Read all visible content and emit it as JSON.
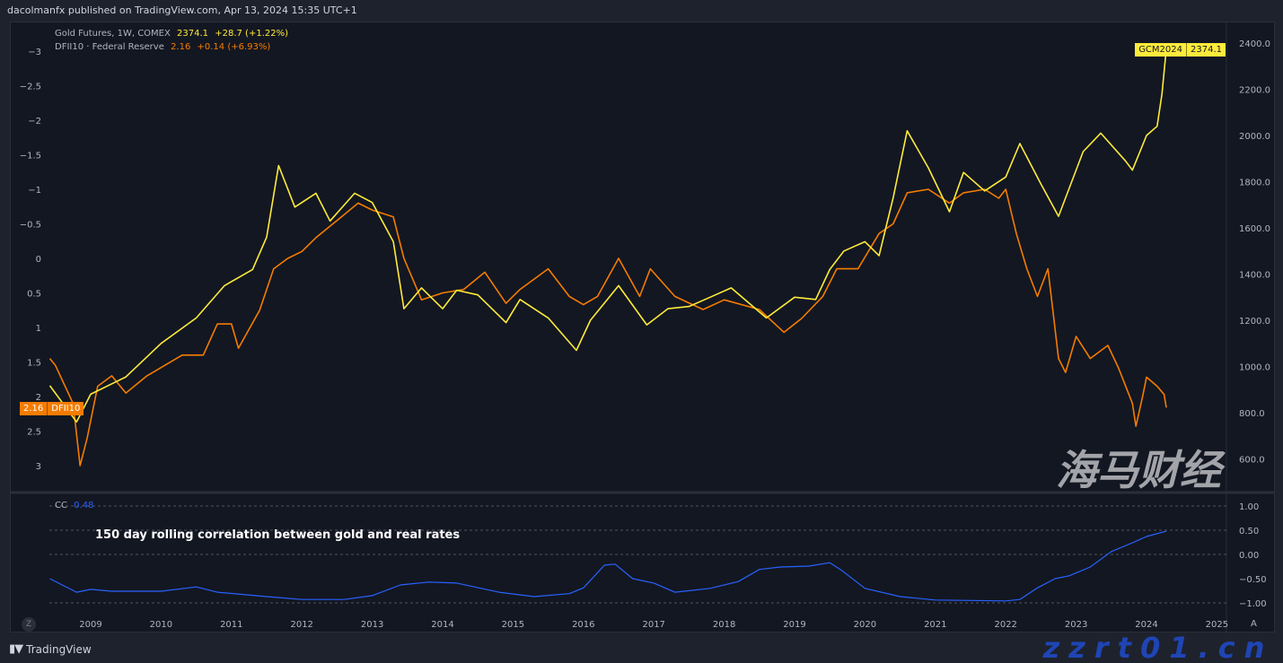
{
  "header": {
    "published": "dacolmanfx published on TradingView.com, Apr 13, 2024 15:35 UTC+1"
  },
  "legend": {
    "gold": {
      "name": "Gold Futures, 1W, COMEX",
      "value": "2374.1",
      "change": "+28.7 (+1.22%)"
    },
    "rates": {
      "name": "DFII10 · Federal Reserve",
      "value": "2.16",
      "change": "+0.14 (+6.93%)"
    },
    "cc": {
      "name": "CC",
      "value": "0.48"
    }
  },
  "badges": {
    "gold": {
      "symbol": "GCM2024",
      "value": "2374.1"
    },
    "rates": {
      "symbol": "DFII10",
      "value": "2.16"
    }
  },
  "annotation": "150 day rolling correlation between gold and real rates",
  "footer": {
    "brand": "TradingView"
  },
  "zoom_button": "Z",
  "auto_label": "A",
  "watermark": {
    "cn": "海马财经",
    "url": "zzrt01.cn"
  },
  "colors": {
    "gold": "#ffeb3b",
    "rates": "#f57c00",
    "cc": "#2962ff",
    "background": "#131722"
  },
  "chart_data": [
    {
      "type": "line",
      "title": "",
      "x_axis": {
        "ticks": [
          "2009",
          "2010",
          "2011",
          "2012",
          "2013",
          "2014",
          "2015",
          "2016",
          "2017",
          "2018",
          "2019",
          "2020",
          "2021",
          "2022",
          "2023",
          "2024",
          "2025"
        ],
        "range": [
          2007.98,
          2025.3
        ]
      },
      "right_axis": {
        "series": "gold",
        "ticks": [
          "2400.0",
          "2200.0",
          "2000.0",
          "1800.0",
          "1600.0",
          "1400.0",
          "1200.0",
          "1000.0",
          "800.0",
          "600.0"
        ],
        "range": [
          540,
          2420
        ]
      },
      "left_axis": {
        "series": "rates",
        "inverted": true,
        "ticks": [
          "-3",
          "-2.5",
          "-2",
          "-1.5",
          "-1",
          "-0.5",
          "0",
          "0.5",
          "1",
          "1.5",
          "2",
          "2.5",
          "3"
        ],
        "range": [
          -3.4,
          3.3
        ]
      },
      "grid": false,
      "series": [
        {
          "name": "Gold Futures, 1W, COMEX",
          "axis": "right",
          "x": [
            2008.42,
            2008.8,
            2009.0,
            2009.5,
            2010.0,
            2010.5,
            2010.9,
            2011.3,
            2011.5,
            2011.67,
            2011.9,
            2012.2,
            2012.4,
            2012.75,
            2013.0,
            2013.3,
            2013.45,
            2013.7,
            2014.0,
            2014.2,
            2014.5,
            2014.9,
            2015.1,
            2015.5,
            2015.9,
            2016.1,
            2016.5,
            2016.9,
            2017.2,
            2017.5,
            2017.8,
            2018.1,
            2018.6,
            2019.0,
            2019.3,
            2019.5,
            2019.7,
            2020.0,
            2020.2,
            2020.4,
            2020.6,
            2020.9,
            2021.2,
            2021.4,
            2021.7,
            2022.0,
            2022.2,
            2022.5,
            2022.75,
            2023.1,
            2023.35,
            2023.7,
            2023.8,
            2024.0,
            2024.15,
            2024.22,
            2024.28
          ],
          "values": [
            917,
            760,
            880,
            955,
            1100,
            1210,
            1350,
            1420,
            1560,
            1870,
            1690,
            1750,
            1630,
            1750,
            1710,
            1540,
            1250,
            1340,
            1250,
            1330,
            1310,
            1190,
            1290,
            1210,
            1070,
            1200,
            1350,
            1180,
            1250,
            1260,
            1300,
            1340,
            1210,
            1300,
            1290,
            1420,
            1500,
            1540,
            1480,
            1730,
            2020,
            1860,
            1670,
            1840,
            1760,
            1820,
            1965,
            1790,
            1650,
            1930,
            2010,
            1890,
            1850,
            2000,
            2040,
            2180,
            2374
          ]
        },
        {
          "name": "DFII10 · Federal Reserve",
          "axis": "left",
          "x": [
            2008.42,
            2008.5,
            2008.75,
            2008.85,
            2008.95,
            2009.1,
            2009.3,
            2009.5,
            2009.8,
            2010.0,
            2010.3,
            2010.6,
            2010.8,
            2011.0,
            2011.1,
            2011.4,
            2011.6,
            2011.8,
            2012.0,
            2012.2,
            2012.5,
            2012.8,
            2013.0,
            2013.3,
            2013.45,
            2013.7,
            2014.0,
            2014.3,
            2014.6,
            2014.9,
            2015.1,
            2015.5,
            2015.8,
            2016.0,
            2016.2,
            2016.5,
            2016.8,
            2016.95,
            2017.3,
            2017.7,
            2018.0,
            2018.5,
            2018.85,
            2019.1,
            2019.4,
            2019.6,
            2019.9,
            2020.2,
            2020.4,
            2020.6,
            2020.9,
            2021.2,
            2021.4,
            2021.7,
            2021.9,
            2022.0,
            2022.15,
            2022.3,
            2022.45,
            2022.6,
            2022.75,
            2022.85,
            2023.0,
            2023.2,
            2023.45,
            2023.6,
            2023.8,
            2023.85,
            2023.95,
            2024.0,
            2024.15,
            2024.25,
            2024.28
          ],
          "values": [
            1.45,
            1.55,
            2.1,
            3.0,
            2.6,
            1.85,
            1.7,
            1.95,
            1.7,
            1.58,
            1.4,
            1.4,
            0.95,
            0.95,
            1.3,
            0.75,
            0.15,
            0.0,
            -0.1,
            -0.3,
            -0.55,
            -0.8,
            -0.7,
            -0.6,
            0.0,
            0.6,
            0.5,
            0.45,
            0.2,
            0.65,
            0.45,
            0.15,
            0.55,
            0.67,
            0.55,
            0.0,
            0.55,
            0.15,
            0.55,
            0.74,
            0.6,
            0.74,
            1.07,
            0.87,
            0.55,
            0.15,
            0.15,
            -0.36,
            -0.5,
            -0.95,
            -1.0,
            -0.8,
            -0.95,
            -1.0,
            -0.87,
            -1.0,
            -0.36,
            0.15,
            0.55,
            0.15,
            1.45,
            1.65,
            1.13,
            1.45,
            1.26,
            1.58,
            2.1,
            2.43,
            1.97,
            1.72,
            1.85,
            1.97,
            2.16
          ]
        }
      ]
    },
    {
      "type": "line",
      "title": "",
      "y_axis": {
        "ticks": [
          "1.00",
          "0.50",
          "0.00",
          "-0.50",
          "-1.00"
        ],
        "range": [
          -1.15,
          1.0
        ],
        "dashed_levels": [
          1.0,
          0.5,
          0.0,
          -1.0
        ]
      },
      "series": [
        {
          "name": "CC",
          "x": [
            2008.42,
            2008.8,
            2009.0,
            2009.3,
            2010.0,
            2010.5,
            2010.8,
            2011.5,
            2012.0,
            2012.6,
            2013.0,
            2013.4,
            2013.8,
            2014.2,
            2014.8,
            2015.3,
            2015.8,
            2016.0,
            2016.3,
            2016.45,
            2016.7,
            2017.0,
            2017.3,
            2017.8,
            2018.2,
            2018.5,
            2018.8,
            2019.2,
            2019.5,
            2019.65,
            2020.0,
            2020.5,
            2021.0,
            2022.0,
            2022.2,
            2022.45,
            2022.7,
            2022.9,
            2023.2,
            2023.5,
            2023.8,
            2024.0,
            2024.28
          ],
          "values": [
            -0.5,
            -0.78,
            -0.72,
            -0.76,
            -0.76,
            -0.67,
            -0.78,
            -0.87,
            -0.93,
            -0.93,
            -0.85,
            -0.63,
            -0.57,
            -0.59,
            -0.78,
            -0.87,
            -0.81,
            -0.69,
            -0.22,
            -0.2,
            -0.5,
            -0.59,
            -0.78,
            -0.7,
            -0.56,
            -0.31,
            -0.26,
            -0.24,
            -0.17,
            -0.31,
            -0.7,
            -0.87,
            -0.94,
            -0.96,
            -0.93,
            -0.69,
            -0.5,
            -0.44,
            -0.26,
            0.06,
            0.24,
            0.37,
            0.48
          ]
        }
      ]
    }
  ]
}
